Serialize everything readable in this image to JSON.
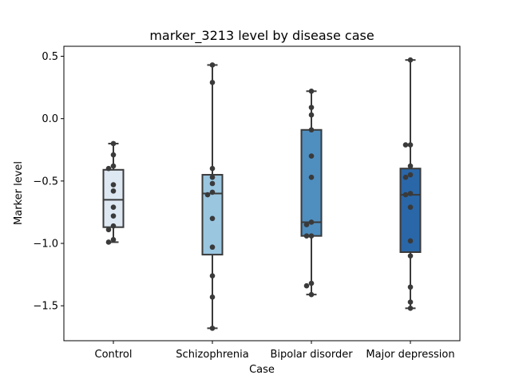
{
  "chart_data": {
    "type": "box",
    "title": "marker_3213 level by disease case",
    "xlabel": "Case",
    "ylabel": "Marker level",
    "ylim": [
      -1.78,
      0.58
    ],
    "yticks": [
      0.5,
      0.0,
      -0.5,
      -1.0,
      -1.5
    ],
    "ytick_labels": [
      "0.5",
      "0.0",
      "−0.5",
      "−1.0",
      "−1.5"
    ],
    "grid": false,
    "categories": [
      "Control",
      "Schizophrenia",
      "Bipolar disorder",
      "Major depression"
    ],
    "colors": [
      "#dde8f3",
      "#9ac6e0",
      "#4f8fc0",
      "#2a67a8"
    ],
    "boxes": [
      {
        "category": "Control",
        "whisker_low": -0.99,
        "q1": -0.87,
        "median": -0.65,
        "q3": -0.41,
        "whisker_high": -0.2
      },
      {
        "category": "Schizophrenia",
        "whisker_low": -1.68,
        "q1": -1.09,
        "median": -0.6,
        "q3": -0.45,
        "whisker_high": 0.43
      },
      {
        "category": "Bipolar disorder",
        "whisker_low": -1.41,
        "q1": -0.94,
        "median": -0.83,
        "q3": -0.09,
        "whisker_high": 0.22
      },
      {
        "category": "Major depression",
        "whisker_low": -1.52,
        "q1": -1.07,
        "median": -0.61,
        "q3": -0.4,
        "whisker_high": 0.47
      }
    ],
    "points": [
      [
        -0.2,
        -0.29,
        -0.38,
        -0.4,
        -0.53,
        -0.58,
        -0.71,
        -0.78,
        -0.86,
        -0.89,
        -0.97,
        -0.99
      ],
      [
        0.43,
        0.29,
        -0.4,
        -0.47,
        -0.52,
        -0.59,
        -0.61,
        -0.8,
        -1.03,
        -1.26,
        -1.43,
        -1.68
      ],
      [
        0.22,
        0.09,
        0.03,
        -0.09,
        -0.3,
        -0.47,
        -0.83,
        -0.85,
        -0.94,
        -0.94,
        -1.32,
        -1.34,
        -1.41
      ],
      [
        0.47,
        -0.21,
        -0.21,
        -0.38,
        -0.45,
        -0.47,
        -0.6,
        -0.61,
        -0.71,
        -0.98,
        -1.1,
        -1.35,
        -1.47,
        -1.52
      ]
    ]
  }
}
